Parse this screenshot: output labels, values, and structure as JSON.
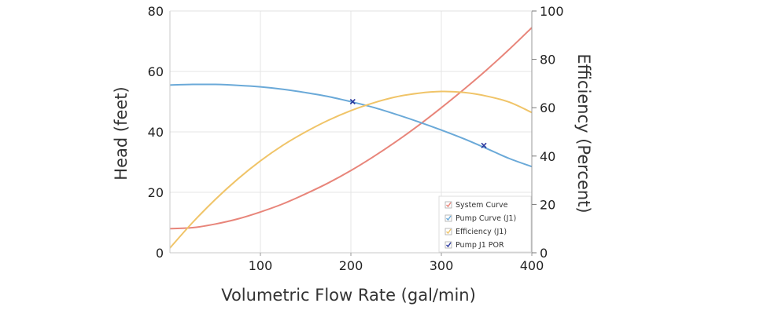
{
  "chart_data": {
    "type": "line",
    "xlabel": "Volumetric Flow Rate (gal/min)",
    "ylabel": "Head (feet)",
    "y2label": "Efficiency (Percent)",
    "xlim": [
      0,
      400
    ],
    "ylim": [
      0,
      80
    ],
    "y2lim": [
      0,
      100
    ],
    "x_ticks": [
      100,
      200,
      300,
      400
    ],
    "y_ticks": [
      0,
      20,
      40,
      60,
      80
    ],
    "y2_ticks": [
      0,
      20,
      40,
      60,
      80,
      100
    ],
    "grid": true,
    "legend_position": "bottom-right",
    "series": [
      {
        "name": "System Curve",
        "axis": "left",
        "color": "#e8857a",
        "marker": "checkbox",
        "x": [
          0,
          25,
          50,
          75,
          100,
          125,
          150,
          175,
          200,
          225,
          250,
          275,
          300,
          325,
          350,
          375,
          400
        ],
        "y": [
          8,
          8.3,
          9.5,
          11.2,
          13.5,
          16.2,
          19.5,
          23.1,
          27.2,
          31.8,
          36.8,
          42.2,
          48,
          54.1,
          60.5,
          67.3,
          74.5
        ]
      },
      {
        "name": "Pump Curve (J1)",
        "axis": "left",
        "color": "#6aa9d8",
        "marker": "checkbox",
        "x": [
          0,
          25,
          50,
          75,
          100,
          125,
          150,
          175,
          200,
          225,
          250,
          275,
          300,
          325,
          350,
          375,
          400
        ],
        "y": [
          55.5,
          55.7,
          55.7,
          55.4,
          54.9,
          54.1,
          53,
          51.7,
          50,
          48.1,
          45.8,
          43.3,
          40.6,
          37.7,
          34.5,
          31.2,
          28.5
        ]
      },
      {
        "name": "Efficiency (J1)",
        "axis": "right",
        "color": "#f0c468",
        "marker": "checkbox",
        "x": [
          0,
          25,
          50,
          75,
          100,
          125,
          150,
          175,
          200,
          225,
          250,
          275,
          300,
          325,
          350,
          375,
          400
        ],
        "y": [
          2,
          12.5,
          22,
          30.5,
          38,
          44.5,
          50,
          54.8,
          58.8,
          62,
          64.5,
          66,
          66.7,
          66.3,
          64.8,
          62.3,
          58
        ]
      },
      {
        "name": "Pump J1 POR",
        "axis": "left",
        "color": "#2c3a9e",
        "marker": "x",
        "x": [
          202,
          347
        ],
        "y": [
          50,
          35.5
        ]
      }
    ]
  }
}
